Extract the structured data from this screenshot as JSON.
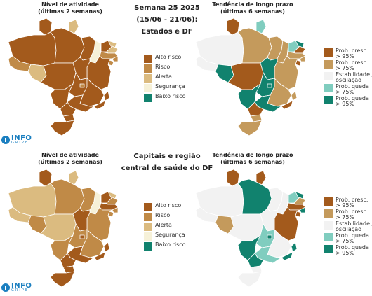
{
  "colors": {
    "alto": "#a35a1c",
    "risco": "#c08a47",
    "alerta": "#dbbb80",
    "seguranca": "#f6f1d8",
    "baixo": "#11826e",
    "prob_cresc_95": "#a35a1c",
    "prob_cresc_75": "#c49a5c",
    "estab": "#f2f2f2",
    "prob_queda_75": "#80cdbf",
    "prob_queda_95": "#11826e"
  },
  "top": {
    "left_title": "Nível de atividade\n(últimas 2 semanas)",
    "center_title": "Semana 25 2025\n(15/06 - 21/06):\nEstados e DF",
    "right_title": "Tendência de longo prazo\n(últimas 6 semanas)"
  },
  "bottom": {
    "left_title": "Nível de atividade\n(últimas 2 semanas)",
    "center_title": "Capitais e região\ncentral de saúde do DF",
    "right_title": "Tendência de longo prazo\n(últimas 6 semanas)"
  },
  "legend_activity": [
    {
      "label": "Alto risco",
      "color": "alto"
    },
    {
      "label": "Risco",
      "color": "risco"
    },
    {
      "label": "Alerta",
      "color": "alerta"
    },
    {
      "label": "Segurança",
      "color": "seguranca"
    },
    {
      "label": "Baixo risco",
      "color": "baixo"
    }
  ],
  "legend_trend": [
    {
      "label": "Prob. cresc.\n> 95%",
      "color": "prob_cresc_95"
    },
    {
      "label": "Prob. cresc.\n> 75%",
      "color": "prob_cresc_75"
    },
    {
      "label": "Estabilidade./\noscilação",
      "color": "estab"
    },
    {
      "label": "Prob. queda\n> 75%",
      "color": "prob_queda_75"
    },
    {
      "label": "Prob. queda\n> 95%",
      "color": "prob_queda_95"
    }
  ],
  "logo": {
    "main": "INFO",
    "sub": "GRIPE"
  },
  "maps": {
    "top_activity": {
      "AC": "risco",
      "AM": "alto",
      "RR": "alto",
      "AP": "alerta",
      "PA": "alto",
      "MA": "alto",
      "PI": "seguranca",
      "CE": "alto",
      "RN": "alerta",
      "PB": "alerta",
      "PE": "risco",
      "AL": "risco",
      "SE": "risco",
      "BA": "alto",
      "TO": "alto",
      "RO": "alerta",
      "MT": "alto",
      "GO": "alto",
      "DF": "risco",
      "MS": "alto",
      "MG": "alto",
      "ES": "alto",
      "RJ": "alto",
      "SP": "alto",
      "PR": "alto",
      "SC": "alto",
      "RS": "alto"
    },
    "top_trend": {
      "AC": "estab",
      "AM": "estab",
      "RR": "prob_cresc_95",
      "AP": "prob_queda_75",
      "PA": "prob_cresc_75",
      "MA": "prob_cresc_75",
      "PI": "prob_cresc_75",
      "CE": "prob_queda_75",
      "RN": "prob_queda_95",
      "PB": "prob_cresc_95",
      "PE": "prob_cresc_75",
      "AL": "prob_cresc_75",
      "SE": "prob_cresc_95",
      "BA": "prob_cresc_75",
      "TO": "prob_queda_95",
      "RO": "prob_queda_95",
      "MT": "prob_cresc_95",
      "GO": "prob_queda_95",
      "DF": "prob_queda_95",
      "MS": "prob_queda_95",
      "MG": "prob_cresc_75",
      "ES": "prob_cresc_75",
      "RJ": "prob_cresc_95",
      "SP": "prob_queda_95",
      "PR": "prob_cresc_95",
      "SC": "prob_cresc_75",
      "RS": "prob_cresc_75"
    },
    "bottom_activity": {
      "AC": "alerta",
      "AM": "alerta",
      "RR": "alto",
      "AP": "alerta",
      "PA": "risco",
      "MA": "risco",
      "PI": "seguranca",
      "CE": "alto",
      "RN": "alerta",
      "PB": "risco",
      "PE": "alto",
      "AL": "risco",
      "SE": "risco",
      "BA": "risco",
      "TO": "alto",
      "RO": "risco",
      "MT": "alerta",
      "GO": "risco",
      "DF": "alto",
      "MS": "risco",
      "MG": "risco",
      "ES": "alto",
      "RJ": "alto",
      "SP": "alto",
      "PR": "alto",
      "SC": "alto",
      "RS": "alto"
    },
    "bottom_trend": {
      "AC": "estab",
      "AM": "estab",
      "RR": "prob_cresc_95",
      "AP": "prob_cresc_95",
      "PA": "prob_queda_95",
      "MA": "estab",
      "PI": "estab",
      "CE": "prob_queda_75",
      "RN": "prob_queda_95",
      "PB": "prob_cresc_75",
      "PE": "prob_cresc_95",
      "AL": "prob_queda_95",
      "SE": "prob_cresc_95",
      "BA": "prob_cresc_95",
      "TO": "estab",
      "RO": "prob_cresc_75",
      "MT": "estab",
      "GO": "prob_queda_75",
      "DF": "prob_queda_95",
      "MS": "prob_queda_95",
      "MG": "estab",
      "ES": "prob_queda_95",
      "RJ": "prob_queda_95",
      "SP": "prob_queda_75",
      "PR": "prob_queda_95",
      "SC": "estab",
      "RS": "estab"
    }
  }
}
